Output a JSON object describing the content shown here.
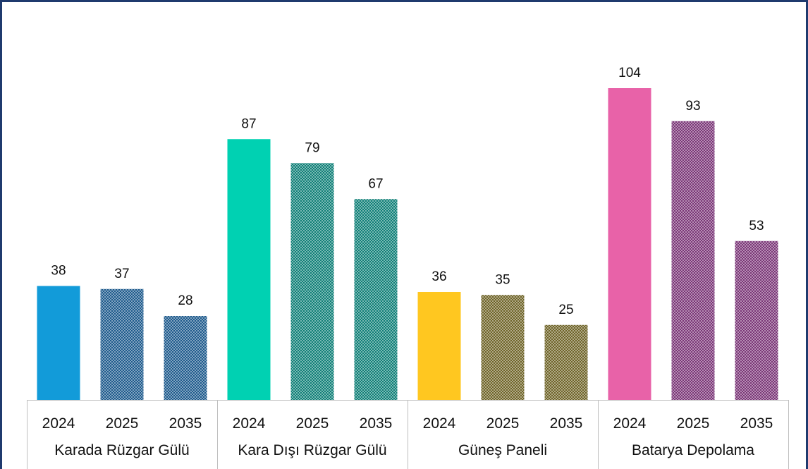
{
  "chart_data": {
    "type": "bar",
    "title": "",
    "xlabel": "",
    "ylabel": "",
    "ylim": [
      0,
      110
    ],
    "grid": false,
    "legend": "none",
    "groups": [
      {
        "name": "Karada Rüzgar Gülü",
        "categories": [
          "2024",
          "2025",
          "2035"
        ],
        "values": [
          38,
          37,
          28
        ],
        "colors": [
          "#129bd9",
          "#1d5a8c",
          "#1d5a8c"
        ],
        "patterns": [
          false,
          true,
          true
        ]
      },
      {
        "name": "Kara Dışı Rüzgar Gülü",
        "categories": [
          "2024",
          "2025",
          "2035"
        ],
        "values": [
          87,
          79,
          67
        ],
        "colors": [
          "#00d1b2",
          "#0f7f77",
          "#0f7f77"
        ],
        "patterns": [
          false,
          true,
          true
        ]
      },
      {
        "name": "Güneş Paneli",
        "categories": [
          "2024",
          "2025",
          "2035"
        ],
        "values": [
          36,
          35,
          25
        ],
        "colors": [
          "#ffc720",
          "#6f6428",
          "#6f6428"
        ],
        "patterns": [
          false,
          true,
          true
        ]
      },
      {
        "name": "Batarya Depolama",
        "categories": [
          "2024",
          "2025",
          "2035"
        ],
        "values": [
          104,
          93,
          53
        ],
        "colors": [
          "#e862a8",
          "#7a3577",
          "#7a3577"
        ],
        "patterns": [
          false,
          true,
          true
        ]
      }
    ]
  }
}
